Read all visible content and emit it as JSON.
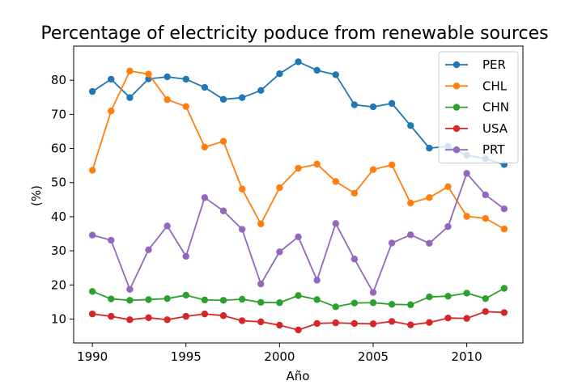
{
  "chart_data": {
    "type": "line",
    "title": "Percentage of electricity poduce from renewable sources",
    "xlabel": "Año",
    "ylabel": "(%)",
    "xlim": [
      1989,
      2013
    ],
    "ylim": [
      3,
      90
    ],
    "xticks": [
      1990,
      1995,
      2000,
      2005,
      2010
    ],
    "yticks": [
      10,
      20,
      30,
      40,
      50,
      60,
      70,
      80
    ],
    "grid": false,
    "legend_position": "top-right",
    "x": [
      1990,
      1991,
      1992,
      1993,
      1994,
      1995,
      1996,
      1997,
      1998,
      1999,
      2000,
      2001,
      2002,
      2003,
      2004,
      2005,
      2006,
      2007,
      2008,
      2009,
      2010,
      2011,
      2012
    ],
    "series": [
      {
        "name": "PER",
        "color": "#1f77b4",
        "values": [
          76.7,
          80.3,
          74.9,
          80.4,
          81.0,
          80.3,
          77.9,
          74.4,
          74.9,
          77.0,
          81.9,
          85.4,
          82.9,
          81.6,
          72.8,
          72.2,
          73.2,
          66.7,
          60.1,
          60.6,
          58.0,
          57.0,
          55.3
        ]
      },
      {
        "name": "CHL",
        "color": "#ff7f0e",
        "values": [
          53.6,
          71.0,
          82.7,
          81.8,
          74.3,
          72.3,
          60.4,
          62.1,
          48.1,
          37.9,
          48.5,
          54.2,
          55.4,
          50.3,
          46.9,
          53.8,
          55.2,
          44.0,
          45.6,
          48.8,
          40.1,
          39.5,
          36.4
        ]
      },
      {
        "name": "CHN",
        "color": "#2ca02c",
        "values": [
          18.1,
          15.9,
          15.5,
          15.7,
          16.0,
          17.0,
          15.6,
          15.5,
          15.8,
          14.9,
          14.8,
          16.9,
          15.7,
          13.6,
          14.7,
          14.8,
          14.3,
          14.2,
          16.5,
          16.7,
          17.6,
          16.0,
          19.0
        ]
      },
      {
        "name": "USA",
        "color": "#d62728",
        "values": [
          11.5,
          10.8,
          9.8,
          10.4,
          9.8,
          10.8,
          11.5,
          11.0,
          9.5,
          9.2,
          8.2,
          6.8,
          8.7,
          8.9,
          8.7,
          8.6,
          9.3,
          8.3,
          9.0,
          10.3,
          10.2,
          12.2,
          11.9
        ]
      },
      {
        "name": "PRT",
        "color": "#9467bd",
        "values": [
          34.6,
          33.1,
          18.7,
          30.3,
          37.3,
          28.4,
          45.6,
          41.7,
          36.3,
          20.3,
          29.7,
          34.1,
          21.4,
          38.0,
          27.6,
          17.8,
          32.3,
          34.7,
          32.2,
          37.1,
          52.7,
          46.4,
          42.3
        ]
      }
    ]
  }
}
